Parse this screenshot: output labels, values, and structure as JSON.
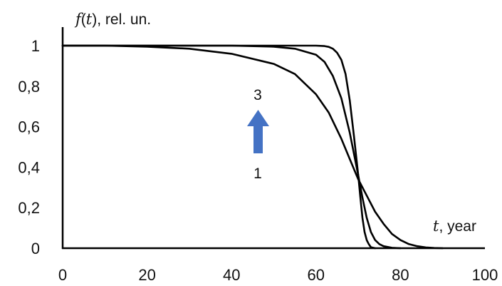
{
  "chart_data": {
    "type": "line",
    "ylabel_fn": "f",
    "ylabel_var": "t",
    "ylabel_unit": ", rel. un.",
    "xlabel_var": "t",
    "xlabel_unit": ", year",
    "xlim": [
      0,
      100
    ],
    "ylim": [
      0,
      1.0
    ],
    "x_ticks": [
      "0",
      "20",
      "40",
      "60",
      "80",
      "100"
    ],
    "y_ticks": [
      "0",
      "0,2",
      "0,4",
      "0,6",
      "0,8",
      "1"
    ],
    "grid": false,
    "arrow_color": "#4472C4",
    "arrow_labels": {
      "top": "3",
      "bottom": "1"
    },
    "series": [
      {
        "x": [
          0,
          10,
          20,
          30,
          40,
          50,
          55,
          60,
          63,
          66,
          68,
          70,
          72,
          74,
          76,
          78,
          80,
          82,
          84,
          86,
          88,
          90
        ],
        "values": [
          1.0,
          1.0,
          0.995,
          0.985,
          0.96,
          0.91,
          0.86,
          0.76,
          0.67,
          0.54,
          0.44,
          0.34,
          0.26,
          0.18,
          0.12,
          0.07,
          0.04,
          0.02,
          0.01,
          0.004,
          0.001,
          0.0
        ]
      },
      {
        "x": [
          0,
          20,
          40,
          50,
          55,
          60,
          62,
          64,
          66,
          68,
          70,
          71,
          72,
          73,
          74,
          75,
          76,
          78,
          80
        ],
        "values": [
          1.0,
          1.0,
          1.0,
          0.995,
          0.985,
          0.955,
          0.92,
          0.85,
          0.74,
          0.57,
          0.36,
          0.25,
          0.15,
          0.08,
          0.04,
          0.02,
          0.01,
          0.002,
          0.0
        ]
      },
      {
        "x": [
          0,
          40,
          60,
          62,
          63,
          64,
          65,
          66,
          67,
          68,
          69,
          70,
          70.5,
          71,
          71.5,
          72,
          72.5,
          73,
          74
        ],
        "values": [
          1.0,
          1.0,
          1.0,
          0.998,
          0.994,
          0.985,
          0.965,
          0.93,
          0.86,
          0.73,
          0.55,
          0.36,
          0.25,
          0.15,
          0.08,
          0.04,
          0.02,
          0.005,
          0.0
        ]
      }
    ]
  }
}
